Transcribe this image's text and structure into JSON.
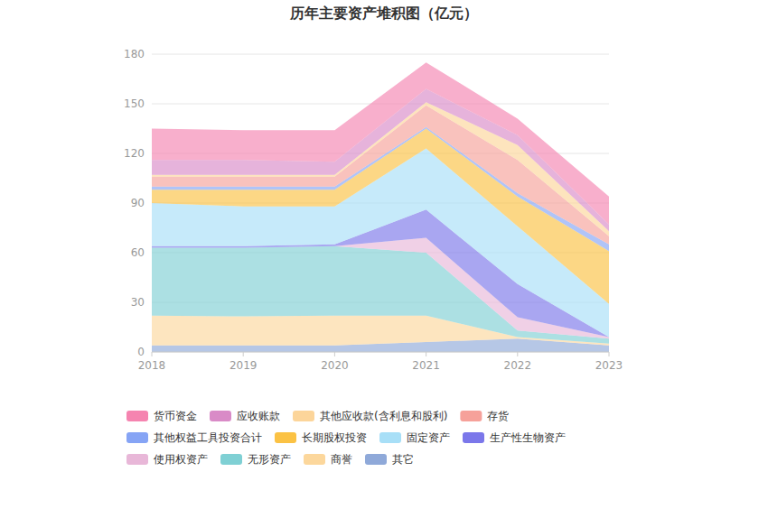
{
  "chart_data": {
    "type": "area",
    "stacked": true,
    "title": "历年主要资产堆积图（亿元）",
    "categories": [
      "2018",
      "2019",
      "2020",
      "2021",
      "2022",
      "2023"
    ],
    "ylim": [
      0,
      180
    ],
    "yticks": [
      0,
      30,
      60,
      90,
      120,
      150,
      180
    ],
    "grid": true,
    "legend": "bottom",
    "series": [
      {
        "name": "货币资金",
        "color": "#f584b0",
        "values": [
          19,
          18,
          19,
          16,
          10,
          17
        ]
      },
      {
        "name": "应收账款",
        "color": "#d98bc7",
        "values": [
          9,
          9,
          8,
          8,
          6,
          4
        ]
      },
      {
        "name": "其他应收款(含利息和股利)",
        "color": "#fcd59a",
        "values": [
          1,
          1,
          1,
          2,
          9,
          3
        ]
      },
      {
        "name": "存货",
        "color": "#f6a19a",
        "values": [
          6,
          6,
          6,
          13,
          20,
          5
        ]
      },
      {
        "name": "其他权益工具投资合计",
        "color": "#86a4f5",
        "values": [
          2,
          2,
          2,
          1,
          2,
          4
        ]
      },
      {
        "name": "长期股权投资",
        "color": "#fbc244",
        "values": [
          8,
          10,
          10,
          12,
          18,
          32
        ]
      },
      {
        "name": "固定资产",
        "color": "#a8dff7",
        "values": [
          26,
          24,
          23,
          37,
          35,
          20
        ]
      },
      {
        "name": "生产性生物资产",
        "color": "#7b77ea",
        "values": [
          1,
          1,
          1,
          17,
          20,
          0
        ]
      },
      {
        "name": "使用权资产",
        "color": "#e8b7d8",
        "values": [
          0,
          0,
          0,
          9,
          8,
          1
        ]
      },
      {
        "name": "无形资产",
        "color": "#7fd0d4",
        "values": [
          41,
          41.5,
          42,
          38,
          4,
          3
        ]
      },
      {
        "name": "商誉",
        "color": "#fcd79c",
        "values": [
          18,
          17.5,
          18,
          16,
          1,
          1
        ]
      },
      {
        "name": "其它",
        "color": "#8fa9d9",
        "values": [
          4,
          4,
          4,
          6,
          8,
          4
        ]
      }
    ]
  }
}
